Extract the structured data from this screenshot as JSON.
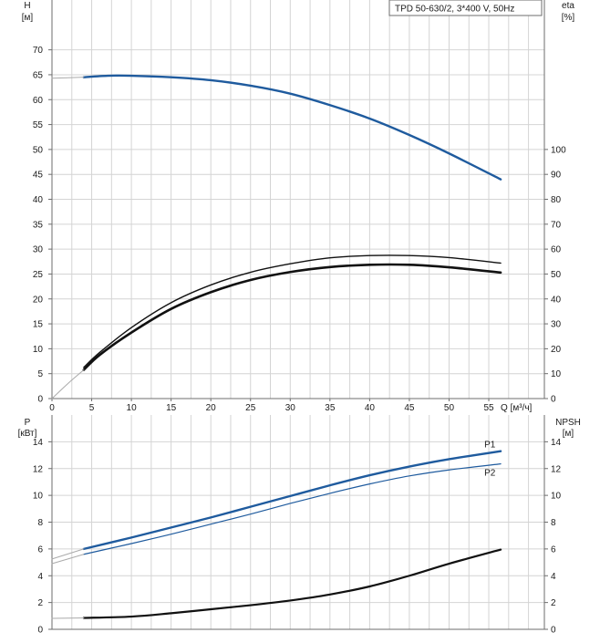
{
  "header_label": "TPD 50-630/2, 3*400 V, 50Hz",
  "colors": {
    "blue": "#1f5b9e",
    "black": "#111111",
    "grid": "#d4d4d4",
    "frame": "#6e6e6e"
  },
  "chart_data": [
    {
      "type": "line",
      "title": "",
      "xlabel": "Q [м³/ч]",
      "x_ticks": [
        "0",
        "5",
        "10",
        "15",
        "20",
        "25",
        "30",
        "35",
        "40",
        "45",
        "50",
        "55"
      ],
      "xlim": [
        0,
        62
      ],
      "y_left_label": [
        "H",
        "[м]"
      ],
      "y_left_ticks": [
        "0",
        "5",
        "10",
        "15",
        "20",
        "25",
        "30",
        "35",
        "40",
        "45",
        "50",
        "55",
        "60",
        "65",
        "70"
      ],
      "ylim_left": [
        0,
        80
      ],
      "y_right_label": [
        "eta",
        "[%]"
      ],
      "y_right_ticks": [
        "0",
        "10",
        "20",
        "30",
        "40",
        "50",
        "60",
        "70",
        "80",
        "90",
        "100"
      ],
      "ylim_right": [
        0,
        160
      ],
      "grid": true,
      "series": [
        {
          "axis": "left",
          "color": "#1f5b9e",
          "width": 2.4,
          "x": [
            4,
            7,
            10,
            15,
            20,
            25,
            30,
            35,
            40,
            45,
            50,
            56.5
          ],
          "y": [
            64.5,
            64.8,
            64.8,
            64.5,
            63.9,
            62.8,
            61.2,
            58.9,
            56.2,
            52.9,
            49.2,
            44.0
          ]
        },
        {
          "axis": "left",
          "color": "#aaaaaa",
          "width": 1,
          "x": [
            0,
            4
          ],
          "y": [
            64.3,
            64.5
          ]
        },
        {
          "axis": "right",
          "color": "#111111",
          "width": 1.4,
          "x": [
            4,
            6,
            10,
            15,
            20,
            25,
            30,
            35,
            40,
            45,
            50,
            56.5
          ],
          "y": [
            12.5,
            18.5,
            28.5,
            38.5,
            45.6,
            50.7,
            54.1,
            56.5,
            57.4,
            57.4,
            56.6,
            54.4
          ]
        },
        {
          "axis": "right",
          "color": "#111111",
          "width": 2.6,
          "x": [
            4,
            6,
            10,
            15,
            20,
            25,
            30,
            35,
            40,
            45,
            50,
            56.5
          ],
          "y": [
            11.5,
            17.5,
            26.5,
            36.0,
            42.7,
            47.6,
            50.8,
            52.8,
            53.7,
            53.7,
            52.7,
            50.6
          ]
        },
        {
          "axis": "right",
          "color": "#aaaaaa",
          "width": 1,
          "x": [
            0,
            2,
            4
          ],
          "y": [
            0,
            6,
            11.5
          ]
        }
      ]
    },
    {
      "type": "line",
      "title": "",
      "xlabel": "",
      "xlim": [
        0,
        62
      ],
      "y_left_label": [
        "P",
        "[кВт]"
      ],
      "y_left_ticks": [
        "0",
        "2",
        "4",
        "6",
        "8",
        "10",
        "12",
        "14"
      ],
      "ylim_left": [
        0,
        16
      ],
      "y_right_label": [
        "NPSH",
        "[м]"
      ],
      "y_right_ticks": [
        "0",
        "2",
        "4",
        "6",
        "8",
        "10",
        "12",
        "14"
      ],
      "ylim_right": [
        0,
        16
      ],
      "grid": true,
      "series": [
        {
          "name": "P1",
          "axis": "left",
          "color": "#1f5b9e",
          "width": 2.4,
          "x": [
            4,
            10,
            15,
            20,
            25,
            30,
            35,
            40,
            45,
            50,
            56.5
          ],
          "y": [
            6.0,
            6.85,
            7.6,
            8.35,
            9.15,
            9.95,
            10.75,
            11.5,
            12.15,
            12.7,
            13.3
          ]
        },
        {
          "name": "P2",
          "axis": "left",
          "color": "#1f5b9e",
          "width": 1.2,
          "x": [
            4,
            10,
            15,
            20,
            25,
            30,
            35,
            40,
            45,
            50,
            56.5
          ],
          "y": [
            5.6,
            6.4,
            7.1,
            7.85,
            8.6,
            9.4,
            10.15,
            10.85,
            11.45,
            11.9,
            12.35
          ]
        },
        {
          "axis": "left",
          "color": "#aaaaaa",
          "width": 1,
          "x": [
            0,
            4
          ],
          "y": [
            5.25,
            6.0
          ]
        },
        {
          "axis": "left",
          "color": "#aaaaaa",
          "width": 1,
          "x": [
            0,
            4
          ],
          "y": [
            4.9,
            5.6
          ]
        },
        {
          "axis": "right",
          "color": "#111111",
          "width": 2.2,
          "x": [
            4,
            10,
            15,
            20,
            25,
            30,
            35,
            40,
            45,
            50,
            56.5
          ],
          "y": [
            0.85,
            0.95,
            1.2,
            1.5,
            1.8,
            2.15,
            2.6,
            3.2,
            4.0,
            4.9,
            5.95
          ]
        },
        {
          "axis": "right",
          "color": "#aaaaaa",
          "width": 1,
          "x": [
            0,
            4
          ],
          "y": [
            0.82,
            0.85
          ]
        }
      ]
    }
  ]
}
